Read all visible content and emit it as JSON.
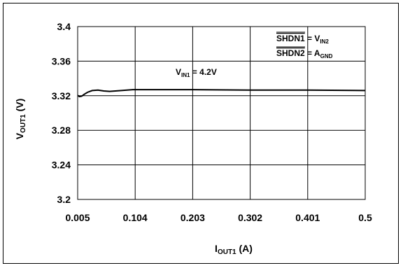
{
  "chart_data": {
    "type": "line",
    "x_ticks": [
      "0.005",
      "0.104",
      "0.203",
      "0.302",
      "0.401",
      "0.5"
    ],
    "y_ticks": [
      "3.2",
      "3.24",
      "3.28",
      "3.32",
      "3.36",
      "3.4"
    ],
    "xlim": [
      0.005,
      0.5
    ],
    "ylim": [
      3.2,
      3.4
    ],
    "grid": true,
    "xlabel": {
      "main": "I",
      "sub": "OUT1",
      "tail": " (A)"
    },
    "ylabel": {
      "main": "V",
      "sub": "OUT1",
      "tail": " (V)"
    },
    "annotations": {
      "vin": {
        "main": "V",
        "sub": "IN1",
        "tail": " = 4.2V"
      },
      "shdn1": {
        "bar": "SHDN1",
        "mid": " = V",
        "sub": "IN2"
      },
      "shdn2": {
        "bar": "SHDN2",
        "mid": " = A",
        "sub": "GND"
      }
    },
    "series": [
      {
        "x": [
          0.005,
          0.008,
          0.012,
          0.016,
          0.022,
          0.03,
          0.04,
          0.05,
          0.06,
          0.07,
          0.08,
          0.09,
          0.1,
          0.104,
          0.15,
          0.203,
          0.3,
          0.4,
          0.5
        ],
        "y": [
          3.3205,
          3.319,
          3.3195,
          3.3215,
          3.324,
          3.326,
          3.3265,
          3.3255,
          3.325,
          3.3255,
          3.326,
          3.3265,
          3.327,
          3.327,
          3.327,
          3.327,
          3.3265,
          3.3265,
          3.326
        ]
      }
    ]
  }
}
